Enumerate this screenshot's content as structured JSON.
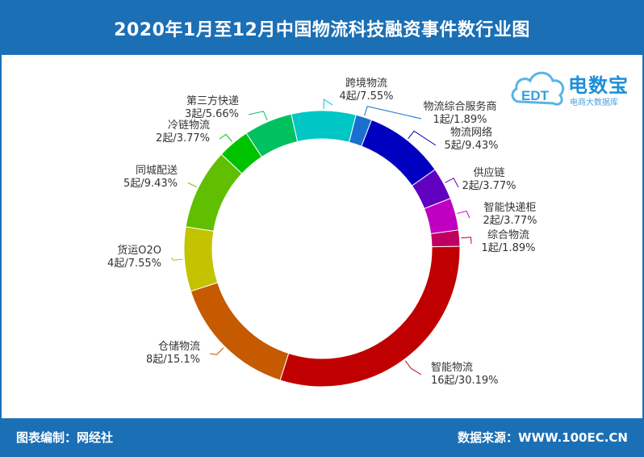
{
  "header": {
    "title": "2020年1月至12月中国物流科技融资事件数行业图"
  },
  "footer": {
    "left": "图表编制：网经社",
    "right": "数据来源：WWW.100EC.CN"
  },
  "logo": {
    "main": "电数宝",
    "sub": "电商大数据库",
    "badge": "EDT"
  },
  "chart_data": {
    "type": "pie",
    "donut": true,
    "title": "2020年1月至12月中国物流科技融资事件数行业图",
    "slices": [
      {
        "name": "智能物流",
        "value": 16,
        "pct": "30.19%",
        "label2": "16起/30.19%",
        "color": "#c00000"
      },
      {
        "name": "仓储物流",
        "value": 8,
        "pct": "15.1%",
        "label2": "8起/15.1%",
        "color": "#c55a00"
      },
      {
        "name": "货运O2O",
        "value": 4,
        "pct": "7.55%",
        "label2": "4起/7.55%",
        "color": "#c3c300"
      },
      {
        "name": "同城配送",
        "value": 5,
        "pct": "9.43%",
        "label2": "5起/9.43%",
        "color": "#5fbf00"
      },
      {
        "name": "冷链物流",
        "value": 2,
        "pct": "3.77%",
        "label2": "2起/3.77%",
        "color": "#00c300"
      },
      {
        "name": "第三方快递",
        "value": 3,
        "pct": "5.66%",
        "label2": "3起/5.66%",
        "color": "#00c060"
      },
      {
        "name": "跨境物流",
        "value": 4,
        "pct": "7.55%",
        "label2": "4起/7.55%",
        "color": "#00c6c6"
      },
      {
        "name": "物流综合服务商",
        "value": 1,
        "pct": "1.89%",
        "label2": "1起/1.89%",
        "color": "#1a6fcf"
      },
      {
        "name": "物流网络",
        "value": 5,
        "pct": "9.43%",
        "label2": "5起/9.43%",
        "color": "#0000c0"
      },
      {
        "name": "供应链",
        "value": 2,
        "pct": "3.77%",
        "label2": "2起/3.77%",
        "color": "#6000c0"
      },
      {
        "name": "智能快递柜",
        "value": 2,
        "pct": "3.77%",
        "label2": "2起/3.77%",
        "color": "#c000c0"
      },
      {
        "name": "综合物流",
        "value": 1,
        "pct": "1.89%",
        "label2": "1起/1.89%",
        "color": "#c00060"
      }
    ]
  }
}
